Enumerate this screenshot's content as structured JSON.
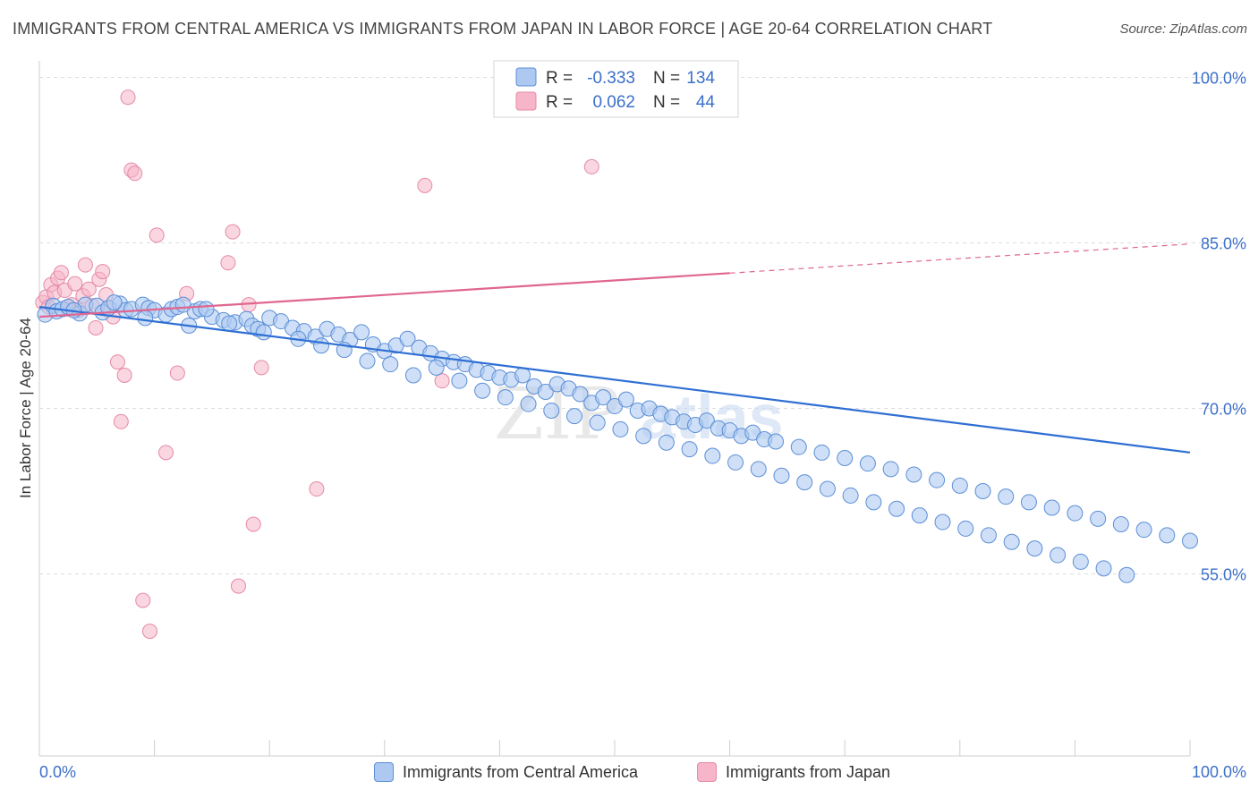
{
  "title": "IMMIGRANTS FROM CENTRAL AMERICA VS IMMIGRANTS FROM JAPAN IN LABOR FORCE | AGE 20-64 CORRELATION CHART",
  "source": "Source: ZipAtlas.com",
  "watermark": {
    "zip": "ZIP",
    "atlas": "atlas"
  },
  "colors": {
    "blue_fill": "#adc9f2",
    "blue_stroke": "#5c8fd6",
    "blue_line": "#2f6fd4",
    "pink_fill": "#f6b5c8",
    "pink_stroke": "#e58aa6",
    "pink_line": "#e06690",
    "tick_text": "#3b6fc9",
    "grid": "#dddddd"
  },
  "legend_box": {
    "rows": [
      {
        "r_label": "R =",
        "r_value": "-0.333",
        "n_label": "N =",
        "n_value": "134"
      },
      {
        "r_label": "R =",
        "r_value": "0.062",
        "n_label": "N =",
        "n_value": "44"
      }
    ]
  },
  "chart_data": {
    "type": "scatter",
    "title": "IMMIGRANTS FROM CENTRAL AMERICA VS IMMIGRANTS FROM JAPAN IN LABOR FORCE | AGE 20-64 CORRELATION CHART",
    "xlabel": "",
    "ylabel": "In Labor Force | Age 20-64",
    "xlim": [
      0,
      100
    ],
    "ylim": [
      38.5,
      101.5
    ],
    "x_tick_labels": [
      "0.0%",
      "100.0%"
    ],
    "y_ticks": [
      55,
      70,
      85,
      100
    ],
    "y_tick_labels": [
      "55.0%",
      "70.0%",
      "85.0%",
      "100.0%"
    ],
    "grid": true,
    "legend_position": "bottom",
    "series": [
      {
        "name": "Immigrants from Central America",
        "r": -0.333,
        "n": 134,
        "trend": {
          "x": [
            0,
            100
          ],
          "y": [
            79.2,
            66.0
          ],
          "dashed_from": null
        },
        "points": [
          [
            0.5,
            78.5
          ],
          [
            1.2,
            79.3
          ],
          [
            1.5,
            78.8
          ],
          [
            2.0,
            79.0
          ],
          [
            2.5,
            79.2
          ],
          [
            3.5,
            78.6
          ],
          [
            4.0,
            79.4
          ],
          [
            5.0,
            79.3
          ],
          [
            5.5,
            78.7
          ],
          [
            6.0,
            79.1
          ],
          [
            7.0,
            79.5
          ],
          [
            7.5,
            78.9
          ],
          [
            8.0,
            79.0
          ],
          [
            9.0,
            79.4
          ],
          [
            9.5,
            79.1
          ],
          [
            10.0,
            78.9
          ],
          [
            11.0,
            78.5
          ],
          [
            11.5,
            79.0
          ],
          [
            12.0,
            79.2
          ],
          [
            13.0,
            77.5
          ],
          [
            13.5,
            78.8
          ],
          [
            14.0,
            79.0
          ],
          [
            15.0,
            78.3
          ],
          [
            16.0,
            78.0
          ],
          [
            17.0,
            77.8
          ],
          [
            18.0,
            78.1
          ],
          [
            18.5,
            77.5
          ],
          [
            19.0,
            77.2
          ],
          [
            20.0,
            78.2
          ],
          [
            21.0,
            77.9
          ],
          [
            22.0,
            77.3
          ],
          [
            23.0,
            77.0
          ],
          [
            24.0,
            76.5
          ],
          [
            25.0,
            77.2
          ],
          [
            26.0,
            76.7
          ],
          [
            27.0,
            76.2
          ],
          [
            28.0,
            76.9
          ],
          [
            29.0,
            75.8
          ],
          [
            30.0,
            75.2
          ],
          [
            31.0,
            75.7
          ],
          [
            32.0,
            76.3
          ],
          [
            33.0,
            75.5
          ],
          [
            34.0,
            75.0
          ],
          [
            35.0,
            74.5
          ],
          [
            36.0,
            74.2
          ],
          [
            37.0,
            74.0
          ],
          [
            38.0,
            73.5
          ],
          [
            39.0,
            73.2
          ],
          [
            40.0,
            72.8
          ],
          [
            41.0,
            72.6
          ],
          [
            42.0,
            73.0
          ],
          [
            43.0,
            72.0
          ],
          [
            44.0,
            71.5
          ],
          [
            45.0,
            72.2
          ],
          [
            46.0,
            71.8
          ],
          [
            47.0,
            71.3
          ],
          [
            48.0,
            70.5
          ],
          [
            49.0,
            71.0
          ],
          [
            50.0,
            70.2
          ],
          [
            51.0,
            70.8
          ],
          [
            52.0,
            69.8
          ],
          [
            53.0,
            70.0
          ],
          [
            54.0,
            69.5
          ],
          [
            55.0,
            69.2
          ],
          [
            56.0,
            68.8
          ],
          [
            57.0,
            68.5
          ],
          [
            58.0,
            68.9
          ],
          [
            59.0,
            68.2
          ],
          [
            60.0,
            68.0
          ],
          [
            61.0,
            67.5
          ],
          [
            62.0,
            67.8
          ],
          [
            63.0,
            67.2
          ],
          [
            64.0,
            67.0
          ],
          [
            66.0,
            66.5
          ],
          [
            68.0,
            66.0
          ],
          [
            70.0,
            65.5
          ],
          [
            72.0,
            65.0
          ],
          [
            74.0,
            64.5
          ],
          [
            76.0,
            64.0
          ],
          [
            78.0,
            63.5
          ],
          [
            80.0,
            63.0
          ],
          [
            82.0,
            62.5
          ],
          [
            84.0,
            62.0
          ],
          [
            86.0,
            61.5
          ],
          [
            88.0,
            61.0
          ],
          [
            90.0,
            60.5
          ],
          [
            92.0,
            60.0
          ],
          [
            94.0,
            59.5
          ],
          [
            96.0,
            59.0
          ],
          [
            98.0,
            58.5
          ],
          [
            100.0,
            58.0
          ],
          [
            3.0,
            78.9
          ],
          [
            6.5,
            79.6
          ],
          [
            9.2,
            78.2
          ],
          [
            12.5,
            79.4
          ],
          [
            14.5,
            79.0
          ],
          [
            16.5,
            77.7
          ],
          [
            19.5,
            76.9
          ],
          [
            22.5,
            76.3
          ],
          [
            24.5,
            75.7
          ],
          [
            26.5,
            75.3
          ],
          [
            28.5,
            74.3
          ],
          [
            30.5,
            74.0
          ],
          [
            32.5,
            73.0
          ],
          [
            34.5,
            73.7
          ],
          [
            36.5,
            72.5
          ],
          [
            38.5,
            71.6
          ],
          [
            40.5,
            71.0
          ],
          [
            42.5,
            70.4
          ],
          [
            44.5,
            69.8
          ],
          [
            46.5,
            69.3
          ],
          [
            48.5,
            68.7
          ],
          [
            50.5,
            68.1
          ],
          [
            52.5,
            67.5
          ],
          [
            54.5,
            66.9
          ],
          [
            56.5,
            66.3
          ],
          [
            58.5,
            65.7
          ],
          [
            60.5,
            65.1
          ],
          [
            62.5,
            64.5
          ],
          [
            64.5,
            63.9
          ],
          [
            66.5,
            63.3
          ],
          [
            68.5,
            62.7
          ],
          [
            70.5,
            62.1
          ],
          [
            72.5,
            61.5
          ],
          [
            74.5,
            60.9
          ],
          [
            76.5,
            60.3
          ],
          [
            78.5,
            59.7
          ],
          [
            80.5,
            59.1
          ],
          [
            82.5,
            58.5
          ],
          [
            84.5,
            57.9
          ],
          [
            86.5,
            57.3
          ],
          [
            88.5,
            56.7
          ],
          [
            90.5,
            56.1
          ],
          [
            92.5,
            55.5
          ],
          [
            94.5,
            54.9
          ]
        ]
      },
      {
        "name": "Immigrants from Japan",
        "r": 0.062,
        "n": 44,
        "trend": {
          "x": [
            0,
            100
          ],
          "y": [
            78.3,
            84.9
          ],
          "dashed_from": 60
        },
        "points": [
          [
            0.3,
            79.6
          ],
          [
            0.6,
            80.1
          ],
          [
            0.8,
            79.2
          ],
          [
            1.0,
            81.2
          ],
          [
            1.3,
            80.5
          ],
          [
            1.6,
            81.8
          ],
          [
            1.9,
            82.3
          ],
          [
            2.2,
            80.7
          ],
          [
            2.5,
            79.0
          ],
          [
            2.8,
            79.4
          ],
          [
            3.1,
            81.3
          ],
          [
            3.4,
            78.9
          ],
          [
            3.8,
            80.2
          ],
          [
            4.0,
            83.0
          ],
          [
            4.3,
            80.8
          ],
          [
            4.6,
            79.3
          ],
          [
            4.9,
            77.3
          ],
          [
            5.2,
            81.7
          ],
          [
            5.5,
            82.4
          ],
          [
            5.8,
            80.3
          ],
          [
            6.1,
            79.1
          ],
          [
            6.4,
            78.3
          ],
          [
            6.8,
            74.2
          ],
          [
            7.1,
            68.8
          ],
          [
            7.4,
            73.0
          ],
          [
            7.7,
            98.2
          ],
          [
            8.0,
            91.6
          ],
          [
            8.3,
            91.3
          ],
          [
            9.0,
            52.6
          ],
          [
            9.6,
            49.8
          ],
          [
            10.2,
            85.7
          ],
          [
            11.0,
            66.0
          ],
          [
            12.0,
            73.2
          ],
          [
            12.8,
            80.4
          ],
          [
            16.4,
            83.2
          ],
          [
            16.8,
            86.0
          ],
          [
            17.3,
            53.9
          ],
          [
            18.2,
            79.4
          ],
          [
            18.6,
            59.5
          ],
          [
            19.3,
            73.7
          ],
          [
            24.1,
            62.7
          ],
          [
            33.5,
            90.2
          ],
          [
            35.0,
            72.5
          ],
          [
            48.0,
            91.9
          ]
        ]
      }
    ]
  },
  "bottom_legend": [
    "Immigrants from Central America",
    "Immigrants from Japan"
  ]
}
